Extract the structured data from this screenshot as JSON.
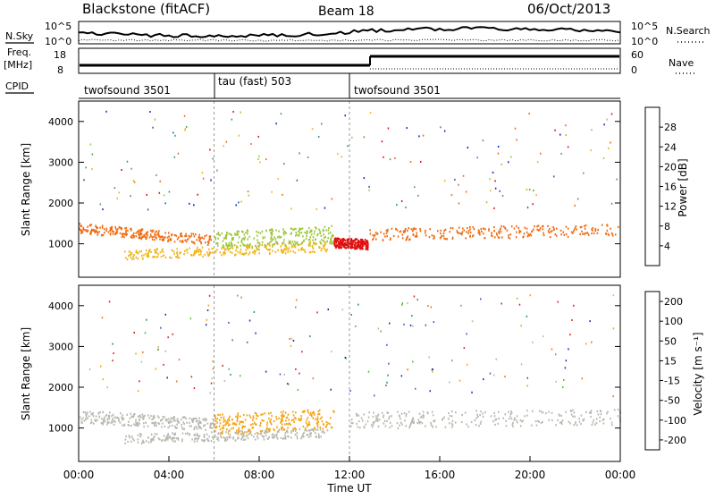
{
  "header": {
    "title": "Blackstone (fitACF)",
    "beam": "Beam 18",
    "date": "06/Oct/2013"
  },
  "noise_panel": {
    "left_label": "N.Sky",
    "right_label": "N.Search",
    "y_top": "10^5",
    "y_bottom": "10^0"
  },
  "freq_panel": {
    "label_line1": "Freq.",
    "label_line2": "[MHz]",
    "y_ticks": [
      "18",
      "8"
    ],
    "right_label": "Nave",
    "right_ticks": [
      "60",
      "0"
    ]
  },
  "cpid": {
    "label": "CPID",
    "segments": [
      {
        "name": "twofsound 3501",
        "start_hour": 0,
        "end_hour": 6
      },
      {
        "name": "tau (fast) 503",
        "start_hour": 6,
        "end_hour": 12
      },
      {
        "name": "twofsound 3501",
        "start_hour": 12,
        "end_hour": 24
      }
    ]
  },
  "chart_data": [
    {
      "type": "heatmap",
      "name": "power",
      "ylabel": "Slant Range [km]",
      "yticks": [
        1000,
        2000,
        3000,
        4000
      ],
      "ylim": [
        180,
        4500
      ],
      "xlim": [
        0,
        24
      ],
      "colorbar": {
        "label": "Power [dB]",
        "ticks": [
          4,
          8,
          12,
          16,
          20,
          24,
          28
        ],
        "colors": [
          "#1020d0",
          "#1f5fb0",
          "#3f8f8f",
          "#4fa25a",
          "#9cc63a",
          "#f2b417",
          "#f06a10",
          "#e01010"
        ]
      },
      "scatter_bands": [
        {
          "x_start": 0,
          "x_end": 6,
          "range_start": 1400,
          "range_end": 1100,
          "width": 120,
          "color": "#f06a10"
        },
        {
          "x_start": 6,
          "x_end": 11.3,
          "range_start": 1100,
          "range_end": 1250,
          "width": 220,
          "color": "#9cc63a"
        },
        {
          "x_start": 2,
          "x_end": 11,
          "range_start": 750,
          "range_end": 950,
          "width": 120,
          "color": "#f2b417"
        },
        {
          "x_start": 11.3,
          "x_end": 12.8,
          "range_start": 1050,
          "range_end": 1000,
          "width": 120,
          "color": "#e01010"
        },
        {
          "x_start": 12.8,
          "x_end": 24,
          "range_start": 1250,
          "range_end": 1350,
          "width": 150,
          "color": "#f06a10"
        }
      ]
    },
    {
      "type": "heatmap",
      "name": "velocity",
      "ylabel": "Slant Range [km]",
      "yticks": [
        1000,
        2000,
        3000,
        4000
      ],
      "ylim": [
        180,
        4500
      ],
      "xlim": [
        0,
        24
      ],
      "xlabel": "Time UT",
      "xticks": [
        "00:00",
        "04:00",
        "08:00",
        "12:00",
        "16:00",
        "20:00",
        "00:00"
      ],
      "colorbar": {
        "label": "Velocity [m s⁻¹]",
        "ticks": [
          "200",
          "100",
          "50",
          "15",
          "-15",
          "-50",
          "-100",
          "-200"
        ],
        "colors": [
          "#1a2ab0",
          "#3a5fc0",
          "#2f8f6a",
          "#4fbf3a",
          "#b8b8b0",
          "#f5a310",
          "#f0701a",
          "#e22020"
        ]
      },
      "scatter_bands": [
        {
          "x_start": 0,
          "x_end": 6,
          "range_start": 1300,
          "range_end": 1100,
          "width": 150,
          "color": "#b8b8b0"
        },
        {
          "x_start": 6,
          "x_end": 11.3,
          "range_start": 1100,
          "range_end": 1250,
          "width": 250,
          "color": "#f5a310"
        },
        {
          "x_start": 2,
          "x_end": 11,
          "range_start": 750,
          "range_end": 900,
          "width": 120,
          "color": "#b8b8b0"
        },
        {
          "x_start": 12,
          "x_end": 24,
          "range_start": 1200,
          "range_end": 1300,
          "width": 200,
          "color": "#b8b8b0"
        }
      ]
    }
  ]
}
